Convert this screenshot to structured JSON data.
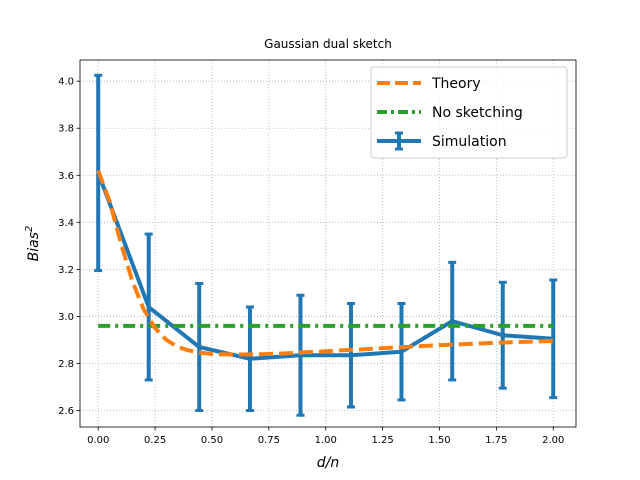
{
  "chart_data": {
    "type": "line",
    "title": "Gaussian dual sketch",
    "xlabel": "d/n",
    "ylabel": {
      "base": "Bias",
      "sup": "2"
    },
    "xlim": [
      -0.08,
      2.1
    ],
    "ylim": [
      2.53,
      4.09
    ],
    "xticks": [
      0.0,
      0.25,
      0.5,
      0.75,
      1.0,
      1.25,
      1.5,
      1.75,
      2.0
    ],
    "xtick_labels": [
      "0.00",
      "0.25",
      "0.50",
      "0.75",
      "1.00",
      "1.25",
      "1.50",
      "1.75",
      "2.00"
    ],
    "yticks": [
      2.6,
      2.8,
      3.0,
      3.2,
      3.4,
      3.6,
      3.8,
      4.0
    ],
    "ytick_labels": [
      "2.6",
      "2.8",
      "3.0",
      "3.2",
      "3.4",
      "3.6",
      "3.8",
      "4.0"
    ],
    "grid": true,
    "legend_position": "top-right",
    "series": [
      {
        "name": "Theory",
        "style": "dashed",
        "color": "#ff7f0e",
        "x": [
          0.0,
          0.05,
          0.1,
          0.15,
          0.2,
          0.25,
          0.3,
          0.35,
          0.4,
          0.45,
          0.5,
          0.6,
          0.7,
          0.8,
          0.9,
          1.0,
          1.25,
          1.5,
          1.75,
          2.0
        ],
        "y": [
          3.62,
          3.49,
          3.31,
          3.15,
          3.03,
          2.95,
          2.9,
          2.87,
          2.855,
          2.846,
          2.84,
          2.838,
          2.839,
          2.842,
          2.847,
          2.852,
          2.865,
          2.878,
          2.888,
          2.896
        ]
      },
      {
        "name": "No sketching",
        "style": "dashdot",
        "color": "#2ca02c",
        "x": [
          0.0,
          2.0
        ],
        "y": [
          2.96,
          2.96
        ]
      },
      {
        "name": "Simulation",
        "style": "solid-errorbar",
        "color": "#1f77b4",
        "x": [
          0.0,
          0.222,
          0.444,
          0.667,
          0.889,
          1.111,
          1.333,
          1.556,
          1.778,
          2.0
        ],
        "y": [
          3.61,
          3.04,
          2.87,
          2.82,
          2.835,
          2.835,
          2.85,
          2.98,
          2.92,
          2.905
        ],
        "yerr": [
          0.415,
          0.31,
          0.27,
          0.22,
          0.255,
          0.22,
          0.205,
          0.25,
          0.225,
          0.25
        ]
      }
    ]
  }
}
